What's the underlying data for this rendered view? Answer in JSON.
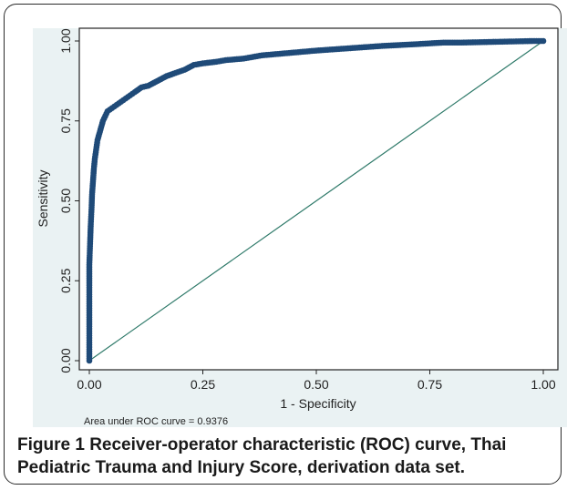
{
  "chart_data": {
    "type": "line",
    "xlabel": "1 - Specificity",
    "ylabel": "Sensitivity",
    "xlim": [
      0,
      1
    ],
    "ylim": [
      0,
      1
    ],
    "xticks": [
      "0.00",
      "0.25",
      "0.50",
      "0.75",
      "1.00"
    ],
    "yticks": [
      "0.00",
      "0.25",
      "0.50",
      "0.75",
      "1.00"
    ],
    "annotation": "Area under ROC curve = 0.9376",
    "grid": "horizontal",
    "series": [
      {
        "kind": "roc",
        "x": [
          0,
          0,
          0,
          0,
          0.002,
          0.003,
          0.004,
          0.005,
          0.006,
          0.008,
          0.01,
          0.012,
          0.015,
          0.018,
          0.022,
          0.026,
          0.03,
          0.035,
          0.04,
          0.05,
          0.06,
          0.07,
          0.08,
          0.09,
          0.1,
          0.115,
          0.13,
          0.15,
          0.17,
          0.19,
          0.21,
          0.23,
          0.25,
          0.28,
          0.3,
          0.34,
          0.38,
          0.42,
          0.46,
          0.5,
          0.55,
          0.6,
          0.65,
          0.72,
          0.78,
          0.82,
          0.98,
          1.0
        ],
        "y": [
          0,
          0.05,
          0.15,
          0.3,
          0.38,
          0.42,
          0.45,
          0.48,
          0.52,
          0.56,
          0.6,
          0.63,
          0.66,
          0.69,
          0.71,
          0.73,
          0.75,
          0.765,
          0.78,
          0.79,
          0.8,
          0.81,
          0.82,
          0.83,
          0.84,
          0.855,
          0.86,
          0.875,
          0.89,
          0.9,
          0.91,
          0.925,
          0.93,
          0.935,
          0.94,
          0.945,
          0.955,
          0.96,
          0.965,
          0.97,
          0.975,
          0.98,
          0.985,
          0.99,
          0.995,
          0.995,
          1.0,
          1.0
        ]
      },
      {
        "kind": "reference",
        "x": [
          0,
          1
        ],
        "y": [
          0,
          1
        ]
      }
    ]
  },
  "colors": {
    "roc": "#1f4a78",
    "reference": "#2f7a6a",
    "plot_background": "#eaf2f3",
    "grid": "#d9e3e6",
    "axis": "#222222",
    "frame": "#2b2b2b"
  },
  "caption": {
    "label": "Figure 1",
    "text": "Receiver-operator characteristic (ROC) curve, Thai Pediatric Trauma and Injury Score, derivation data set."
  }
}
